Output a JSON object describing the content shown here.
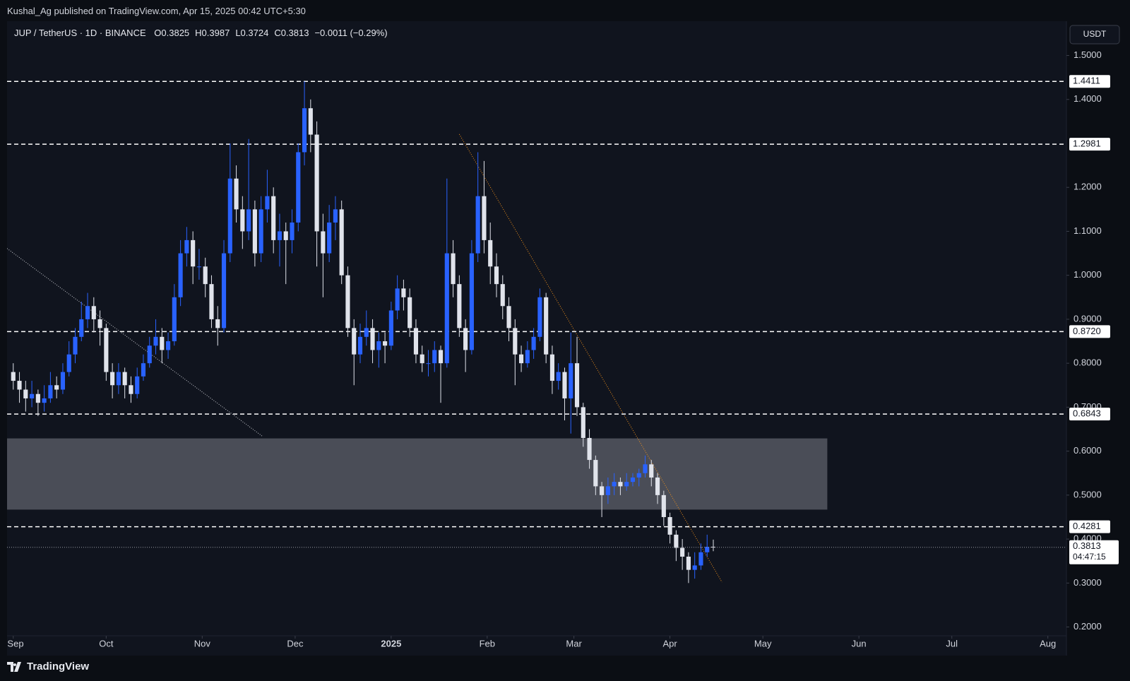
{
  "chart_data": {
    "type": "candlestick",
    "header": "Kushal_Ag published on TradingView.com, Apr 15, 2025 00:42 UTC+5:30",
    "title": "JUP / TetherUS · 1D · BINANCE",
    "ohlc_prefixes": [
      "O",
      "H",
      "L",
      "C"
    ],
    "change": "−0.0011 (−0.29%)",
    "currency": "USDT",
    "countdown": "04:47:15",
    "footer": "TradingView",
    "up_color": "#2962ff",
    "down_color": "#e0e3eb",
    "candles": [
      [
        0.78,
        0.8,
        0.74,
        0.76
      ],
      [
        0.76,
        0.78,
        0.71,
        0.74
      ],
      [
        0.74,
        0.76,
        0.69,
        0.72
      ],
      [
        0.72,
        0.76,
        0.7,
        0.73
      ],
      [
        0.73,
        0.74,
        0.68,
        0.71
      ],
      [
        0.71,
        0.75,
        0.69,
        0.72
      ],
      [
        0.72,
        0.78,
        0.71,
        0.75
      ],
      [
        0.75,
        0.77,
        0.72,
        0.74
      ],
      [
        0.74,
        0.8,
        0.73,
        0.78
      ],
      [
        0.78,
        0.85,
        0.77,
        0.82
      ],
      [
        0.82,
        0.88,
        0.8,
        0.86
      ],
      [
        0.86,
        0.94,
        0.85,
        0.9
      ],
      [
        0.9,
        0.96,
        0.88,
        0.93
      ],
      [
        0.93,
        0.95,
        0.87,
        0.9
      ],
      [
        0.9,
        0.92,
        0.84,
        0.88
      ],
      [
        0.88,
        0.89,
        0.76,
        0.78
      ],
      [
        0.78,
        0.8,
        0.72,
        0.75
      ],
      [
        0.75,
        0.8,
        0.73,
        0.78
      ],
      [
        0.78,
        0.79,
        0.72,
        0.75
      ],
      [
        0.75,
        0.77,
        0.71,
        0.73
      ],
      [
        0.73,
        0.79,
        0.72,
        0.77
      ],
      [
        0.77,
        0.82,
        0.76,
        0.8
      ],
      [
        0.8,
        0.86,
        0.79,
        0.84
      ],
      [
        0.84,
        0.9,
        0.82,
        0.86
      ],
      [
        0.86,
        0.88,
        0.8,
        0.83
      ],
      [
        0.83,
        0.87,
        0.81,
        0.85
      ],
      [
        0.85,
        0.98,
        0.84,
        0.95
      ],
      [
        0.95,
        1.08,
        0.93,
        1.05
      ],
      [
        1.05,
        1.11,
        1.02,
        1.08
      ],
      [
        1.08,
        1.1,
        0.98,
        1.02
      ],
      [
        1.02,
        1.06,
        0.99,
        1.02
      ],
      [
        1.02,
        1.04,
        0.95,
        0.98
      ],
      [
        0.98,
        1.0,
        0.88,
        0.9
      ],
      [
        0.9,
        0.93,
        0.84,
        0.88
      ],
      [
        0.88,
        1.08,
        0.87,
        1.05
      ],
      [
        1.05,
        1.3,
        1.03,
        1.22
      ],
      [
        1.22,
        1.25,
        1.12,
        1.15
      ],
      [
        1.15,
        1.18,
        1.06,
        1.1
      ],
      [
        1.1,
        1.31,
        1.08,
        1.15
      ],
      [
        1.15,
        1.17,
        1.02,
        1.05
      ],
      [
        1.05,
        1.18,
        1.03,
        1.15
      ],
      [
        1.15,
        1.24,
        1.12,
        1.18
      ],
      [
        1.18,
        1.2,
        1.05,
        1.08
      ],
      [
        1.08,
        1.14,
        1.02,
        1.1
      ],
      [
        1.1,
        1.12,
        0.98,
        1.08
      ],
      [
        1.08,
        1.15,
        1.05,
        1.12
      ],
      [
        1.12,
        1.3,
        1.1,
        1.28
      ],
      [
        1.28,
        1.4411,
        1.25,
        1.38
      ],
      [
        1.38,
        1.4,
        1.28,
        1.32
      ],
      [
        1.32,
        1.35,
        1.02,
        1.1
      ],
      [
        1.1,
        1.14,
        0.95,
        1.05
      ],
      [
        1.05,
        1.16,
        1.03,
        1.12
      ],
      [
        1.12,
        1.18,
        1.08,
        1.15
      ],
      [
        1.15,
        1.17,
        0.98,
        1.0
      ],
      [
        1.0,
        1.02,
        0.86,
        0.88
      ],
      [
        0.88,
        0.9,
        0.75,
        0.82
      ],
      [
        0.82,
        0.89,
        0.8,
        0.86
      ],
      [
        0.86,
        0.92,
        0.84,
        0.88
      ],
      [
        0.88,
        0.9,
        0.8,
        0.83
      ],
      [
        0.83,
        0.87,
        0.79,
        0.85
      ],
      [
        0.85,
        0.87,
        0.8,
        0.84
      ],
      [
        0.84,
        0.94,
        0.83,
        0.92
      ],
      [
        0.92,
        1.0,
        0.9,
        0.97
      ],
      [
        0.97,
        0.99,
        0.92,
        0.95
      ],
      [
        0.95,
        0.97,
        0.86,
        0.88
      ],
      [
        0.88,
        0.9,
        0.8,
        0.82
      ],
      [
        0.82,
        0.84,
        0.78,
        0.8
      ],
      [
        0.8,
        0.83,
        0.77,
        0.8
      ],
      [
        0.8,
        0.85,
        0.78,
        0.83
      ],
      [
        0.83,
        0.84,
        0.71,
        0.8
      ],
      [
        0.8,
        1.22,
        0.79,
        1.05
      ],
      [
        1.05,
        1.08,
        0.95,
        0.98
      ],
      [
        0.98,
        1.0,
        0.86,
        0.88
      ],
      [
        0.88,
        0.9,
        0.78,
        0.83
      ],
      [
        0.83,
        1.08,
        0.82,
        1.05
      ],
      [
        1.05,
        1.28,
        1.03,
        1.18
      ],
      [
        1.18,
        1.26,
        1.05,
        1.08
      ],
      [
        1.08,
        1.12,
        0.98,
        1.02
      ],
      [
        1.02,
        1.05,
        0.95,
        0.98
      ],
      [
        0.98,
        1.0,
        0.9,
        0.93
      ],
      [
        0.93,
        0.95,
        0.85,
        0.88
      ],
      [
        0.88,
        0.9,
        0.75,
        0.82
      ],
      [
        0.82,
        0.84,
        0.78,
        0.8
      ],
      [
        0.8,
        0.85,
        0.79,
        0.83
      ],
      [
        0.83,
        0.88,
        0.81,
        0.86
      ],
      [
        0.86,
        0.97,
        0.85,
        0.95
      ],
      [
        0.95,
        0.96,
        0.8,
        0.82
      ],
      [
        0.82,
        0.84,
        0.73,
        0.76
      ],
      [
        0.76,
        0.8,
        0.74,
        0.78
      ],
      [
        0.78,
        0.79,
        0.67,
        0.72
      ],
      [
        0.72,
        0.87,
        0.64,
        0.8
      ],
      [
        0.8,
        0.86,
        0.68,
        0.7
      ],
      [
        0.7,
        0.71,
        0.61,
        0.63
      ],
      [
        0.63,
        0.65,
        0.56,
        0.58
      ],
      [
        0.58,
        0.59,
        0.5,
        0.52
      ],
      [
        0.52,
        0.53,
        0.45,
        0.5
      ],
      [
        0.5,
        0.54,
        0.48,
        0.52
      ],
      [
        0.52,
        0.55,
        0.5,
        0.53
      ],
      [
        0.53,
        0.54,
        0.5,
        0.52
      ],
      [
        0.52,
        0.55,
        0.51,
        0.53
      ],
      [
        0.53,
        0.55,
        0.52,
        0.54
      ],
      [
        0.54,
        0.56,
        0.52,
        0.55
      ],
      [
        0.55,
        0.59,
        0.54,
        0.57
      ],
      [
        0.57,
        0.58,
        0.52,
        0.54
      ],
      [
        0.54,
        0.55,
        0.48,
        0.5
      ],
      [
        0.5,
        0.51,
        0.43,
        0.45
      ],
      [
        0.45,
        0.46,
        0.39,
        0.41
      ],
      [
        0.41,
        0.42,
        0.35,
        0.38
      ],
      [
        0.38,
        0.4,
        0.33,
        0.36
      ],
      [
        0.36,
        0.37,
        0.3,
        0.33
      ],
      [
        0.33,
        0.37,
        0.31,
        0.34
      ],
      [
        0.34,
        0.39,
        0.33,
        0.37
      ],
      [
        0.37,
        0.41,
        0.36,
        0.3824
      ],
      [
        0.3825,
        0.3987,
        0.3724,
        0.3813
      ]
    ],
    "xlim": [
      -1,
      170
    ],
    "xticks": [
      {
        "value": 0,
        "label": "Sep"
      },
      {
        "value": 15,
        "label": "Oct"
      },
      {
        "value": 30.5,
        "label": "Nov"
      },
      {
        "value": 45.5,
        "label": "Dec"
      },
      {
        "value": 61,
        "label": "2025"
      },
      {
        "value": 76.5,
        "label": "Feb"
      },
      {
        "value": 90.5,
        "label": "Mar"
      },
      {
        "value": 106,
        "label": "Apr"
      },
      {
        "value": 121,
        "label": "May"
      },
      {
        "value": 136.5,
        "label": "Jun"
      },
      {
        "value": 151.5,
        "label": "Jul"
      },
      {
        "value": 167,
        "label": "Aug"
      }
    ],
    "ylim": [
      0.18,
      1.578
    ],
    "yticks": [
      {
        "value": 0.2,
        "label": "0.2000"
      },
      {
        "value": 0.3,
        "label": "0.3000"
      },
      {
        "value": 0.4,
        "label": "0.4000"
      },
      {
        "value": 0.5,
        "label": "0.5000"
      },
      {
        "value": 0.6,
        "label": "0.6000"
      },
      {
        "value": 0.7,
        "label": "0.7000"
      },
      {
        "value": 0.8,
        "label": "0.8000"
      },
      {
        "value": 0.9,
        "label": "0.9000"
      },
      {
        "value": 1.0,
        "label": "1.0000"
      },
      {
        "value": 1.1,
        "label": "1.1000"
      },
      {
        "value": 1.2,
        "label": "1.2000"
      },
      {
        "value": 1.4,
        "label": "1.4000"
      },
      {
        "value": 1.5,
        "label": "1.5000"
      }
    ],
    "levels": [
      1.4411,
      1.2981,
      {
        "value": 0.872,
        "label": "0.8720"
      },
      0.6843,
      0.4281
    ],
    "zone": {
      "x": [
        -1,
        131.4
      ],
      "y": [
        0.467,
        0.629
      ],
      "color": "#4a4d57"
    },
    "trendlines": [
      {
        "x": [
          72,
          114.4
        ],
        "y": [
          1.321,
          0.302
        ],
        "color": "#f7931a"
      },
      {
        "x": [
          -1,
          40.3
        ],
        "y": [
          1.061,
          0.633
        ],
        "color": "#c8cad0"
      }
    ]
  }
}
